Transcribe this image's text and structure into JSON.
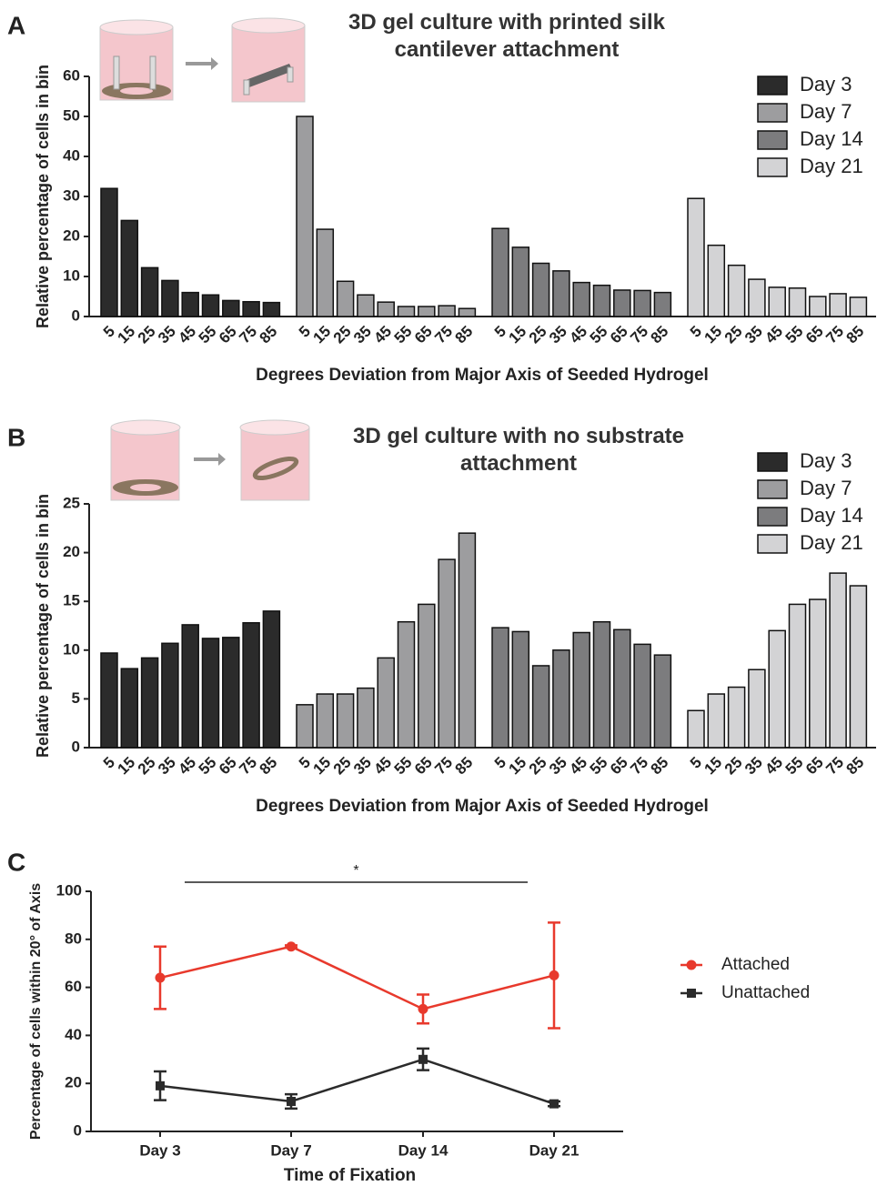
{
  "chart_data": [
    {
      "type": "bar",
      "panel": "A",
      "title": "3D gel culture with printed silk cantilever attachment",
      "xlabel": "Degrees Deviation from Major Axis of Seeded Hydrogel",
      "ylabel": "Relative percentage of cells in bin",
      "categories": [
        "5",
        "15",
        "25",
        "35",
        "45",
        "55",
        "65",
        "75",
        "85"
      ],
      "series": [
        {
          "name": "Day 3",
          "color": "#2b2b2b",
          "values": [
            32,
            24,
            12.2,
            9,
            6,
            5.4,
            4,
            3.7,
            3.5
          ]
        },
        {
          "name": "Day 7",
          "color": "#9d9d9f",
          "values": [
            50,
            21.8,
            8.8,
            5.4,
            3.6,
            2.5,
            2.5,
            2.7,
            2
          ]
        },
        {
          "name": "Day 14",
          "color": "#7c7c7e",
          "values": [
            22,
            17.3,
            13.3,
            11.4,
            8.5,
            7.8,
            6.6,
            6.5,
            6
          ]
        },
        {
          "name": "Day 21",
          "color": "#d3d3d5",
          "values": [
            29.5,
            17.8,
            12.8,
            9.3,
            7.3,
            7.1,
            5,
            5.7,
            4.8
          ]
        }
      ],
      "ylim": [
        0,
        60
      ],
      "yticks": [
        0,
        10,
        20,
        30,
        40,
        50,
        60
      ],
      "legend": "upper right"
    },
    {
      "type": "bar",
      "panel": "B",
      "title": "3D gel culture with no substrate attachment",
      "xlabel": "Degrees Deviation from Major Axis of Seeded Hydrogel",
      "ylabel": "Relative percentage of cells in bin",
      "categories": [
        "5",
        "15",
        "25",
        "35",
        "45",
        "55",
        "65",
        "75",
        "85"
      ],
      "series": [
        {
          "name": "Day 3",
          "color": "#2b2b2b",
          "values": [
            9.7,
            8.1,
            9.2,
            10.7,
            12.6,
            11.2,
            11.3,
            12.8,
            14
          ]
        },
        {
          "name": "Day 7",
          "color": "#9d9d9f",
          "values": [
            4.4,
            5.5,
            5.5,
            6.1,
            9.2,
            12.9,
            14.7,
            19.3,
            22
          ]
        },
        {
          "name": "Day 14",
          "color": "#7c7c7e",
          "values": [
            12.3,
            11.9,
            8.4,
            10,
            11.8,
            12.9,
            12.1,
            10.6,
            9.5
          ]
        },
        {
          "name": "Day 21",
          "color": "#d3d3d5",
          "values": [
            3.8,
            5.5,
            6.2,
            8,
            12,
            14.7,
            15.2,
            17.9,
            16.6
          ]
        }
      ],
      "ylim": [
        0,
        25
      ],
      "yticks": [
        0,
        5,
        10,
        15,
        20,
        25
      ],
      "legend": "upper right"
    },
    {
      "type": "line",
      "panel": "C",
      "xlabel": "Time of Fixation",
      "ylabel": "Percentage of cells within 20° of Axis",
      "annotation": "*",
      "categories": [
        "Day 3",
        "Day 7",
        "Day 14",
        "Day 21"
      ],
      "series": [
        {
          "name": "Attached",
          "color": "#e8392c",
          "marker": "circle",
          "values": [
            64,
            77,
            51,
            65
          ],
          "errors": [
            13,
            0.5,
            6,
            22
          ]
        },
        {
          "name": "Unattached",
          "color": "#2b2b2b",
          "marker": "square",
          "values": [
            19,
            12.5,
            30,
            11.5
          ],
          "errors": [
            6,
            3,
            4.5,
            1
          ]
        }
      ],
      "ylim": [
        0,
        100
      ],
      "yticks": [
        0,
        20,
        40,
        60,
        80,
        100
      ],
      "legend": "right"
    }
  ]
}
